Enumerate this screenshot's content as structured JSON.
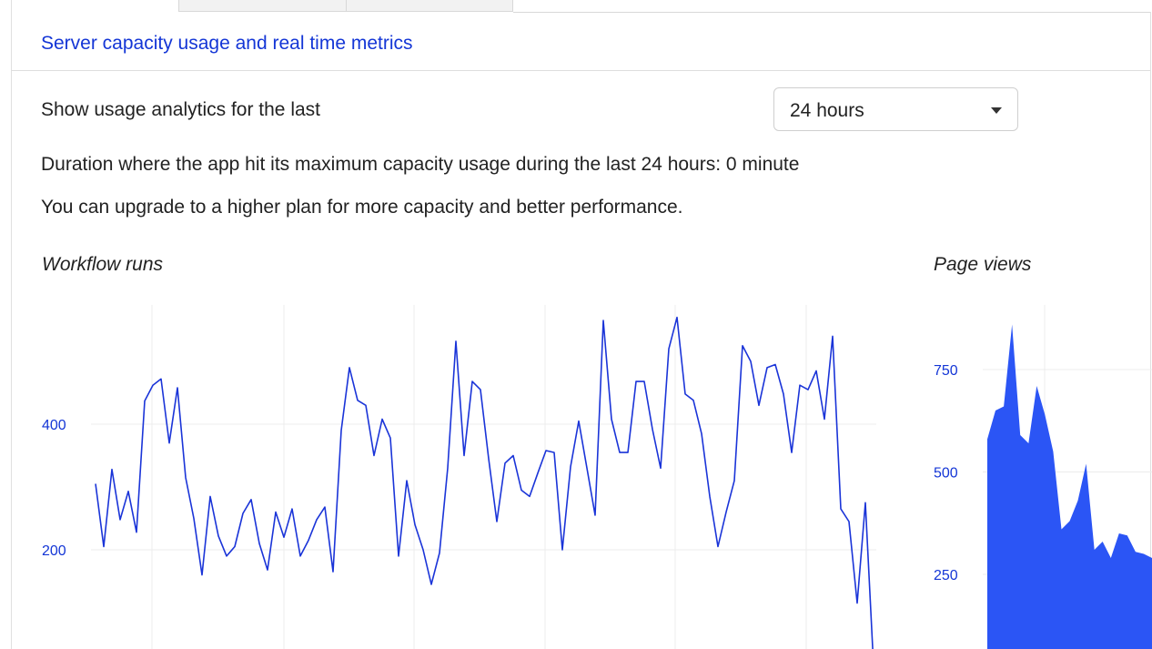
{
  "section": {
    "title": "Server capacity usage and real time metrics"
  },
  "filter": {
    "label": "Show usage analytics for the last",
    "selected": "24 hours"
  },
  "info": {
    "duration_text": "Duration where the app hit its maximum capacity usage during the last 24 hours: 0 minute",
    "upgrade_text": "You can upgrade to a higher plan for more capacity and better performance."
  },
  "colors": {
    "accent": "#1436d6",
    "area_fill": "#2b55f5"
  },
  "chart_data": [
    {
      "type": "line",
      "title": "Workflow runs",
      "yticks": [
        200,
        400
      ],
      "ylim": [
        0,
        590
      ],
      "grid": true,
      "series": [
        {
          "values": [
            305,
            205,
            328,
            248,
            293,
            228,
            437,
            462,
            472,
            370,
            458,
            315,
            250,
            160,
            285,
            222,
            190,
            205,
            258,
            280,
            210,
            168,
            260,
            220,
            265,
            190,
            215,
            248,
            268,
            165,
            390,
            490,
            438,
            430,
            350,
            408,
            378,
            190,
            310,
            240,
            200,
            145,
            195,
            330,
            532,
            350,
            468,
            455,
            345,
            245,
            338,
            350,
            295,
            285,
            322,
            358,
            355,
            200,
            332,
            405,
            330,
            255,
            565,
            408,
            355,
            355,
            468,
            468,
            392,
            330,
            520,
            570,
            448,
            438,
            385,
            285,
            205,
            260,
            310,
            525,
            500,
            430,
            490,
            495,
            448,
            355,
            462,
            455,
            485,
            408,
            540,
            265,
            245,
            115,
            275,
            15
          ]
        }
      ]
    },
    {
      "type": "area",
      "title": "Page views",
      "yticks": [
        250,
        500,
        750
      ],
      "grid": true,
      "series": [
        {
          "values": [
            580,
            650,
            660,
            860,
            590,
            570,
            710,
            640,
            550,
            360,
            380,
            430,
            520,
            310,
            330,
            290,
            350,
            345,
            305,
            300,
            290
          ]
        }
      ]
    }
  ]
}
